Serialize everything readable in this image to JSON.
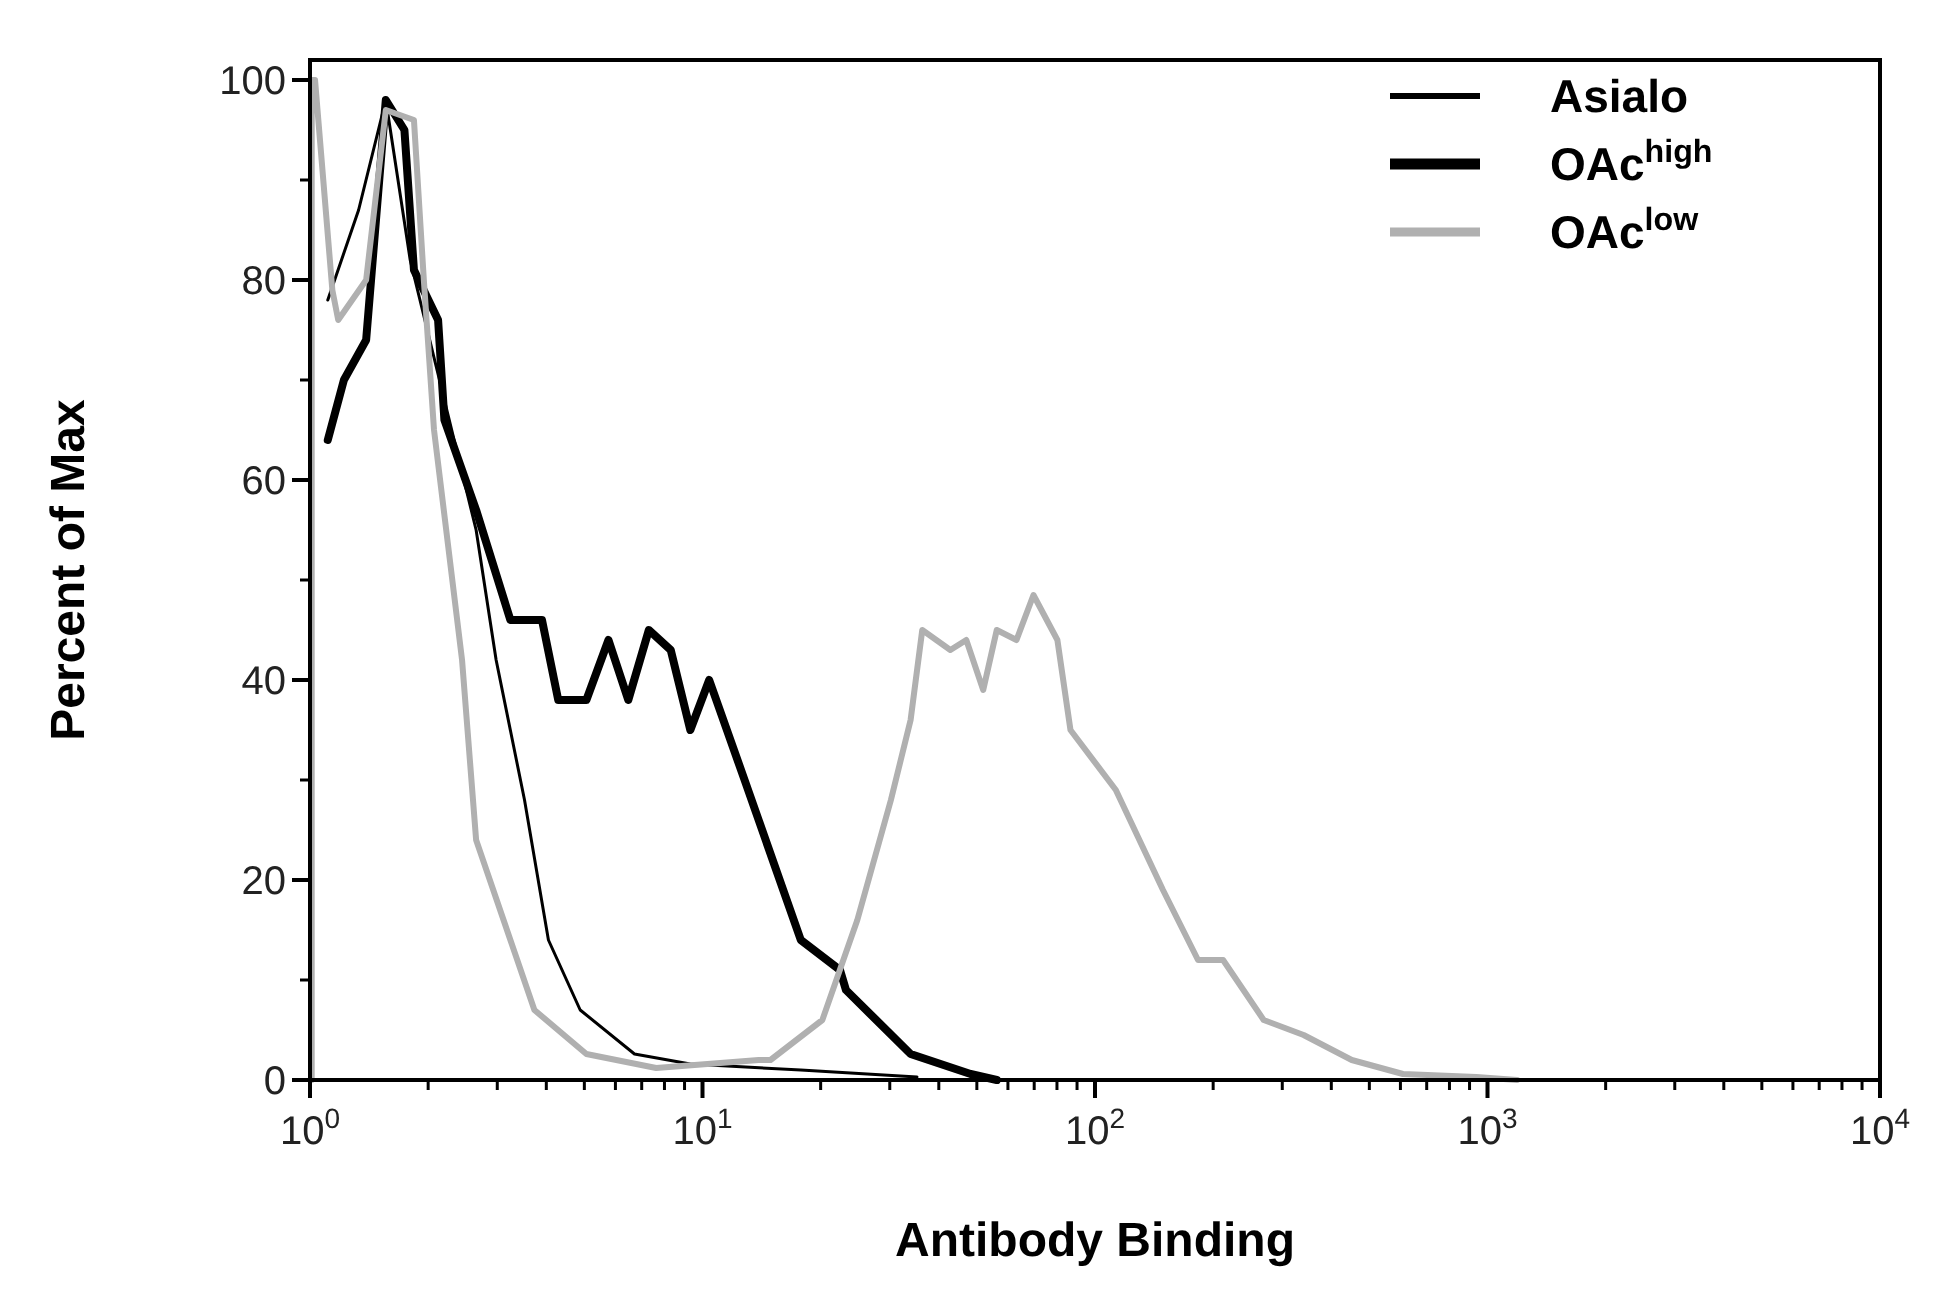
{
  "chart_data": {
    "type": "line",
    "xlabel": "Antibody Binding",
    "ylabel": "Percent of Max",
    "log": "x",
    "legend": "top right",
    "grid": false,
    "line_style": "solid",
    "xlim": [
      1,
      10000
    ],
    "ylim": [
      0,
      102
    ],
    "xticks": [
      {
        "value": 1,
        "label": "10$^{0}$"
      },
      {
        "value": 2,
        "label": null
      },
      {
        "value": 3,
        "label": null
      },
      {
        "value": 4,
        "label": null
      },
      {
        "value": 5,
        "label": null
      },
      {
        "value": 6,
        "label": null
      },
      {
        "value": 7,
        "label": null
      },
      {
        "value": 8,
        "label": null
      },
      {
        "value": 9,
        "label": null
      },
      {
        "value": 10,
        "label": "10$^{1}$"
      },
      {
        "value": 20,
        "label": null
      },
      {
        "value": 30,
        "label": null
      },
      {
        "value": 40,
        "label": null
      },
      {
        "value": 50,
        "label": null
      },
      {
        "value": 60,
        "label": null
      },
      {
        "value": 70,
        "label": null
      },
      {
        "value": 80,
        "label": null
      },
      {
        "value": 90,
        "label": null
      },
      {
        "value": 100,
        "label": "10$^{2}$"
      },
      {
        "value": 200,
        "label": null
      },
      {
        "value": 300,
        "label": null
      },
      {
        "value": 400,
        "label": null
      },
      {
        "value": 500,
        "label": null
      },
      {
        "value": 600,
        "label": null
      },
      {
        "value": 700,
        "label": null
      },
      {
        "value": 800,
        "label": null
      },
      {
        "value": 900,
        "label": null
      },
      {
        "value": 1000,
        "label": "10$^{3}$"
      },
      {
        "value": 2000,
        "label": null
      },
      {
        "value": 3000,
        "label": null
      },
      {
        "value": 4000,
        "label": null
      },
      {
        "value": 5000,
        "label": null
      },
      {
        "value": 6000,
        "label": null
      },
      {
        "value": 7000,
        "label": null
      },
      {
        "value": 8000,
        "label": null
      },
      {
        "value": 9000,
        "label": null
      },
      {
        "value": 10000,
        "label": "10$^{4}$"
      }
    ],
    "yticks": [
      0,
      {
        "value": 10,
        "label": null
      },
      20,
      {
        "value": 30,
        "label": null
      },
      40,
      {
        "value": 50,
        "label": null
      },
      60,
      {
        "value": 70,
        "label": null
      },
      80,
      {
        "value": 90,
        "label": null
      },
      100
    ],
    "series": [
      {
        "name": "Asialo",
        "color": "#000000",
        "x": [
          1.11,
          1.33,
          1.56,
          1.8,
          2.65,
          2.98,
          3.52,
          4.05,
          4.88,
          6.71,
          9.31,
          17.8,
          35.2
        ],
        "values": [
          78,
          87,
          98,
          82,
          55,
          42,
          28,
          14,
          7,
          2.6,
          1.6,
          1,
          0.3
        ]
      },
      {
        "name": "OAc$^{high}$",
        "color": "#000000",
        "x": [
          1.11,
          1.22,
          1.39,
          1.56,
          1.74,
          1.84,
          2.12,
          2.2,
          2.65,
          3.24,
          3.9,
          4.29,
          5.06,
          5.76,
          6.47,
          7.3,
          8.3,
          9.31,
          10.4,
          12.8,
          17.8,
          22.4,
          23.2,
          33.9,
          48.2,
          56.2
        ],
        "values": [
          64,
          70,
          74,
          98,
          95,
          81,
          76,
          66,
          57,
          46,
          46,
          38,
          38,
          44,
          38,
          45,
          43,
          35,
          40,
          30,
          14,
          11,
          9,
          2.6,
          0.6,
          0
        ]
      },
      {
        "name": "OAc$^{low}$",
        "color": "#b0b0b0",
        "x": [
          1.01,
          1.01,
          1.03,
          1.14,
          1.18,
          1.39,
          1.56,
          1.84,
          1.95,
          2.07,
          2.44,
          2.65,
          3.24,
          3.73,
          5.06,
          7.62,
          13.9,
          14.9,
          20.2,
          24.8,
          30.2,
          33.9,
          36.3,
          42.8,
          47,
          51.9,
          56.2,
          63.1,
          69.7,
          80.2,
          86.6,
          113,
          149,
          183,
          212,
          269,
          340,
          451,
          609,
          937,
          1190
        ],
        "values": [
          0,
          100,
          100,
          79,
          76,
          80,
          97,
          96,
          80,
          65,
          42,
          24,
          14,
          7,
          2.6,
          1.2,
          2,
          2,
          6,
          16,
          28,
          36,
          45,
          43,
          44,
          39,
          45,
          44,
          48.5,
          44,
          35,
          29,
          19,
          12,
          12,
          6,
          4.5,
          2,
          0.6,
          0.3,
          0
        ]
      }
    ]
  }
}
